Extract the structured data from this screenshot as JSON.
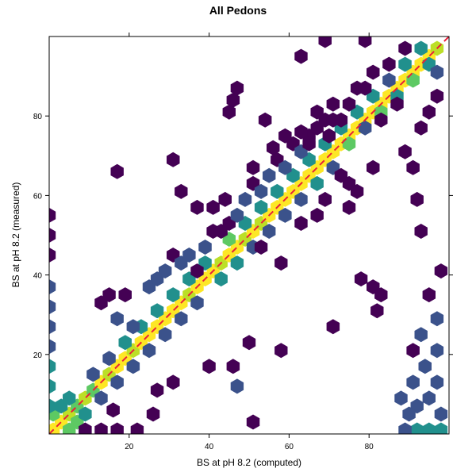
{
  "chart_data": {
    "type": "hexbin",
    "title": "All Pedons",
    "xlabel": "BS at pH 8.2 (computed)",
    "ylabel": "BS at pH 8.2 (measured)",
    "xlim": [
      0,
      100
    ],
    "ylim": [
      0,
      100
    ],
    "xticks": [
      20,
      40,
      60,
      80
    ],
    "yticks": [
      20,
      40,
      60,
      80
    ],
    "grid": false,
    "reference_line": {
      "type": "1:1",
      "slope": 1,
      "intercept": 0,
      "color": "#e8203a",
      "style": "dashed"
    },
    "color_scale": {
      "name": "viridis",
      "levels": [
        "#440154",
        "#3b528b",
        "#21908d",
        "#5dc963",
        "#bcdf27",
        "#fde725"
      ]
    },
    "bins": [
      {
        "x": 1,
        "y": 1,
        "level": 5
      },
      {
        "x": 3,
        "y": 3,
        "level": 5
      },
      {
        "x": 5,
        "y": 5,
        "level": 4
      },
      {
        "x": 7,
        "y": 7,
        "level": 3
      },
      {
        "x": 9,
        "y": 9,
        "level": 4
      },
      {
        "x": 11,
        "y": 11,
        "level": 3
      },
      {
        "x": 13,
        "y": 13,
        "level": 5
      },
      {
        "x": 15,
        "y": 15,
        "level": 4
      },
      {
        "x": 17,
        "y": 17,
        "level": 5
      },
      {
        "x": 19,
        "y": 19,
        "level": 5
      },
      {
        "x": 21,
        "y": 21,
        "level": 4
      },
      {
        "x": 23,
        "y": 23,
        "level": 5
      },
      {
        "x": 25,
        "y": 25,
        "level": 5
      },
      {
        "x": 27,
        "y": 27,
        "level": 5
      },
      {
        "x": 29,
        "y": 29,
        "level": 5
      },
      {
        "x": 31,
        "y": 31,
        "level": 5
      },
      {
        "x": 33,
        "y": 33,
        "level": 5
      },
      {
        "x": 35,
        "y": 35,
        "level": 4
      },
      {
        "x": 37,
        "y": 37,
        "level": 5
      },
      {
        "x": 39,
        "y": 39,
        "level": 5
      },
      {
        "x": 41,
        "y": 41,
        "level": 5
      },
      {
        "x": 43,
        "y": 43,
        "level": 4
      },
      {
        "x": 45,
        "y": 45,
        "level": 5
      },
      {
        "x": 47,
        "y": 47,
        "level": 5
      },
      {
        "x": 49,
        "y": 49,
        "level": 4
      },
      {
        "x": 51,
        "y": 51,
        "level": 5
      },
      {
        "x": 53,
        "y": 53,
        "level": 4
      },
      {
        "x": 55,
        "y": 55,
        "level": 5
      },
      {
        "x": 57,
        "y": 57,
        "level": 5
      },
      {
        "x": 59,
        "y": 59,
        "level": 5
      },
      {
        "x": 61,
        "y": 61,
        "level": 5
      },
      {
        "x": 63,
        "y": 63,
        "level": 5
      },
      {
        "x": 65,
        "y": 65,
        "level": 5
      },
      {
        "x": 67,
        "y": 67,
        "level": 5
      },
      {
        "x": 69,
        "y": 69,
        "level": 5
      },
      {
        "x": 71,
        "y": 71,
        "level": 5
      },
      {
        "x": 73,
        "y": 73,
        "level": 5
      },
      {
        "x": 75,
        "y": 75,
        "level": 5
      },
      {
        "x": 77,
        "y": 77,
        "level": 5
      },
      {
        "x": 79,
        "y": 79,
        "level": 5
      },
      {
        "x": 81,
        "y": 81,
        "level": 5
      },
      {
        "x": 83,
        "y": 83,
        "level": 5
      },
      {
        "x": 85,
        "y": 85,
        "level": 5
      },
      {
        "x": 87,
        "y": 87,
        "level": 5
      },
      {
        "x": 89,
        "y": 89,
        "level": 5
      },
      {
        "x": 91,
        "y": 91,
        "level": 5
      },
      {
        "x": 93,
        "y": 93,
        "level": 5
      },
      {
        "x": 95,
        "y": 95,
        "level": 5
      },
      {
        "x": 97,
        "y": 97,
        "level": 4
      },
      {
        "x": 1,
        "y": 5,
        "level": 3
      },
      {
        "x": 3,
        "y": 7,
        "level": 2
      },
      {
        "x": 5,
        "y": 9,
        "level": 2
      },
      {
        "x": 7,
        "y": 3,
        "level": 3
      },
      {
        "x": 9,
        "y": 5,
        "level": 2
      },
      {
        "x": 11,
        "y": 15,
        "level": 1
      },
      {
        "x": 13,
        "y": 9,
        "level": 1
      },
      {
        "x": 15,
        "y": 19,
        "level": 1
      },
      {
        "x": 17,
        "y": 13,
        "level": 1
      },
      {
        "x": 19,
        "y": 23,
        "level": 2
      },
      {
        "x": 21,
        "y": 17,
        "level": 1
      },
      {
        "x": 23,
        "y": 27,
        "level": 2
      },
      {
        "x": 25,
        "y": 21,
        "level": 1
      },
      {
        "x": 27,
        "y": 31,
        "level": 2
      },
      {
        "x": 29,
        "y": 25,
        "level": 1
      },
      {
        "x": 31,
        "y": 35,
        "level": 2
      },
      {
        "x": 33,
        "y": 29,
        "level": 1
      },
      {
        "x": 35,
        "y": 39,
        "level": 2
      },
      {
        "x": 37,
        "y": 33,
        "level": 1
      },
      {
        "x": 39,
        "y": 43,
        "level": 2
      },
      {
        "x": 43,
        "y": 39,
        "level": 2
      },
      {
        "x": 45,
        "y": 49,
        "level": 3
      },
      {
        "x": 47,
        "y": 43,
        "level": 2
      },
      {
        "x": 49,
        "y": 53,
        "level": 2
      },
      {
        "x": 51,
        "y": 47,
        "level": 1
      },
      {
        "x": 53,
        "y": 57,
        "level": 2
      },
      {
        "x": 55,
        "y": 51,
        "level": 1
      },
      {
        "x": 57,
        "y": 61,
        "level": 2
      },
      {
        "x": 59,
        "y": 55,
        "level": 1
      },
      {
        "x": 61,
        "y": 65,
        "level": 2
      },
      {
        "x": 63,
        "y": 59,
        "level": 1
      },
      {
        "x": 65,
        "y": 69,
        "level": 2
      },
      {
        "x": 67,
        "y": 63,
        "level": 2
      },
      {
        "x": 69,
        "y": 73,
        "level": 2
      },
      {
        "x": 71,
        "y": 67,
        "level": 1
      },
      {
        "x": 73,
        "y": 77,
        "level": 2
      },
      {
        "x": 75,
        "y": 73,
        "level": 3
      },
      {
        "x": 77,
        "y": 81,
        "level": 2
      },
      {
        "x": 79,
        "y": 77,
        "level": 1
      },
      {
        "x": 81,
        "y": 85,
        "level": 2
      },
      {
        "x": 83,
        "y": 81,
        "level": 3
      },
      {
        "x": 85,
        "y": 89,
        "level": 1
      },
      {
        "x": 87,
        "y": 85,
        "level": 2
      },
      {
        "x": 89,
        "y": 93,
        "level": 2
      },
      {
        "x": 91,
        "y": 89,
        "level": 3
      },
      {
        "x": 93,
        "y": 97,
        "level": 2
      },
      {
        "x": 95,
        "y": 93,
        "level": 2
      },
      {
        "x": 97,
        "y": 91,
        "level": 1
      },
      {
        "x": 0,
        "y": 55,
        "level": 0
      },
      {
        "x": 0,
        "y": 50,
        "level": 0
      },
      {
        "x": 0,
        "y": 45,
        "level": 0
      },
      {
        "x": 0,
        "y": 37,
        "level": 1
      },
      {
        "x": 0,
        "y": 32,
        "level": 1
      },
      {
        "x": 0,
        "y": 27,
        "level": 1
      },
      {
        "x": 0,
        "y": 22,
        "level": 1
      },
      {
        "x": 0,
        "y": 17,
        "level": 2
      },
      {
        "x": 0,
        "y": 12,
        "level": 2
      },
      {
        "x": 0,
        "y": 7,
        "level": 2
      },
      {
        "x": 98,
        "y": 1,
        "level": 2
      },
      {
        "x": 95,
        "y": 1,
        "level": 2
      },
      {
        "x": 92,
        "y": 1,
        "level": 2
      },
      {
        "x": 89,
        "y": 1,
        "level": 1
      },
      {
        "x": 98,
        "y": 5,
        "level": 1
      },
      {
        "x": 95,
        "y": 9,
        "level": 1
      },
      {
        "x": 92,
        "y": 7,
        "level": 1
      },
      {
        "x": 97,
        "y": 13,
        "level": 1
      },
      {
        "x": 94,
        "y": 17,
        "level": 1
      },
      {
        "x": 91,
        "y": 13,
        "level": 1
      },
      {
        "x": 97,
        "y": 21,
        "level": 1
      },
      {
        "x": 93,
        "y": 25,
        "level": 1
      },
      {
        "x": 97,
        "y": 29,
        "level": 1
      },
      {
        "x": 95,
        "y": 35,
        "level": 0
      },
      {
        "x": 98,
        "y": 41,
        "level": 0
      },
      {
        "x": 88,
        "y": 9,
        "level": 1
      },
      {
        "x": 90,
        "y": 5,
        "level": 1
      },
      {
        "x": 91,
        "y": 21,
        "level": 0
      },
      {
        "x": 5,
        "y": 1,
        "level": 3
      },
      {
        "x": 9,
        "y": 1,
        "level": 0
      },
      {
        "x": 13,
        "y": 1,
        "level": 0
      },
      {
        "x": 17,
        "y": 1,
        "level": 0
      },
      {
        "x": 22,
        "y": 1,
        "level": 0
      },
      {
        "x": 26,
        "y": 5,
        "level": 0
      },
      {
        "x": 51,
        "y": 3,
        "level": 0
      },
      {
        "x": 16,
        "y": 6,
        "level": 0
      },
      {
        "x": 27,
        "y": 11,
        "level": 0
      },
      {
        "x": 31,
        "y": 13,
        "level": 0
      },
      {
        "x": 47,
        "y": 12,
        "level": 1
      },
      {
        "x": 40,
        "y": 17,
        "level": 0
      },
      {
        "x": 46,
        "y": 17,
        "level": 0
      },
      {
        "x": 50,
        "y": 23,
        "level": 0
      },
      {
        "x": 58,
        "y": 21,
        "level": 0
      },
      {
        "x": 13,
        "y": 33,
        "level": 0
      },
      {
        "x": 15,
        "y": 35,
        "level": 0
      },
      {
        "x": 19,
        "y": 35,
        "level": 0
      },
      {
        "x": 17,
        "y": 29,
        "level": 1
      },
      {
        "x": 21,
        "y": 27,
        "level": 1
      },
      {
        "x": 25,
        "y": 37,
        "level": 1
      },
      {
        "x": 27,
        "y": 39,
        "level": 1
      },
      {
        "x": 29,
        "y": 41,
        "level": 1
      },
      {
        "x": 31,
        "y": 45,
        "level": 0
      },
      {
        "x": 33,
        "y": 43,
        "level": 1
      },
      {
        "x": 35,
        "y": 45,
        "level": 1
      },
      {
        "x": 37,
        "y": 41,
        "level": 0
      },
      {
        "x": 39,
        "y": 47,
        "level": 1
      },
      {
        "x": 41,
        "y": 51,
        "level": 0
      },
      {
        "x": 43,
        "y": 51,
        "level": 0
      },
      {
        "x": 45,
        "y": 53,
        "level": 0
      },
      {
        "x": 47,
        "y": 55,
        "level": 1
      },
      {
        "x": 49,
        "y": 59,
        "level": 1
      },
      {
        "x": 51,
        "y": 63,
        "level": 0
      },
      {
        "x": 53,
        "y": 61,
        "level": 1
      },
      {
        "x": 55,
        "y": 65,
        "level": 1
      },
      {
        "x": 57,
        "y": 69,
        "level": 0
      },
      {
        "x": 59,
        "y": 67,
        "level": 1
      },
      {
        "x": 61,
        "y": 73,
        "level": 0
      },
      {
        "x": 63,
        "y": 71,
        "level": 1
      },
      {
        "x": 65,
        "y": 75,
        "level": 0
      },
      {
        "x": 67,
        "y": 77,
        "level": 0
      },
      {
        "x": 69,
        "y": 79,
        "level": 0
      },
      {
        "x": 73,
        "y": 79,
        "level": 0
      },
      {
        "x": 71,
        "y": 83,
        "level": 0
      },
      {
        "x": 75,
        "y": 83,
        "level": 0
      },
      {
        "x": 77,
        "y": 87,
        "level": 0
      },
      {
        "x": 79,
        "y": 87,
        "level": 0
      },
      {
        "x": 81,
        "y": 91,
        "level": 0
      },
      {
        "x": 85,
        "y": 93,
        "level": 0
      },
      {
        "x": 89,
        "y": 97,
        "level": 0
      },
      {
        "x": 17,
        "y": 66,
        "level": 0
      },
      {
        "x": 31,
        "y": 69,
        "level": 0
      },
      {
        "x": 33,
        "y": 61,
        "level": 0
      },
      {
        "x": 46,
        "y": 84,
        "level": 0
      },
      {
        "x": 47,
        "y": 87,
        "level": 0
      },
      {
        "x": 45,
        "y": 81,
        "level": 0
      },
      {
        "x": 51,
        "y": 67,
        "level": 0
      },
      {
        "x": 54,
        "y": 79,
        "level": 0
      },
      {
        "x": 59,
        "y": 75,
        "level": 0
      },
      {
        "x": 56,
        "y": 72,
        "level": 0
      },
      {
        "x": 63,
        "y": 76,
        "level": 0
      },
      {
        "x": 65,
        "y": 73,
        "level": 0
      },
      {
        "x": 67,
        "y": 81,
        "level": 0
      },
      {
        "x": 71,
        "y": 79,
        "level": 0
      },
      {
        "x": 70,
        "y": 75,
        "level": 0
      },
      {
        "x": 75,
        "y": 63,
        "level": 0
      },
      {
        "x": 77,
        "y": 61,
        "level": 0
      },
      {
        "x": 81,
        "y": 67,
        "level": 0
      },
      {
        "x": 83,
        "y": 79,
        "level": 0
      },
      {
        "x": 87,
        "y": 83,
        "level": 0
      },
      {
        "x": 89,
        "y": 71,
        "level": 0
      },
      {
        "x": 91,
        "y": 67,
        "level": 0
      },
      {
        "x": 92,
        "y": 59,
        "level": 0
      },
      {
        "x": 93,
        "y": 51,
        "level": 0
      },
      {
        "x": 93,
        "y": 77,
        "level": 0
      },
      {
        "x": 95,
        "y": 81,
        "level": 0
      },
      {
        "x": 97,
        "y": 85,
        "level": 0
      },
      {
        "x": 75,
        "y": 57,
        "level": 0
      },
      {
        "x": 78,
        "y": 39,
        "level": 0
      },
      {
        "x": 81,
        "y": 37,
        "level": 0
      },
      {
        "x": 83,
        "y": 35,
        "level": 0
      },
      {
        "x": 82,
        "y": 31,
        "level": 0
      },
      {
        "x": 71,
        "y": 27,
        "level": 0
      },
      {
        "x": 63,
        "y": 53,
        "level": 0
      },
      {
        "x": 67,
        "y": 55,
        "level": 0
      },
      {
        "x": 69,
        "y": 59,
        "level": 0
      },
      {
        "x": 73,
        "y": 65,
        "level": 0
      },
      {
        "x": 58,
        "y": 43,
        "level": 0
      },
      {
        "x": 53,
        "y": 47,
        "level": 0
      },
      {
        "x": 63,
        "y": 95,
        "level": 0
      },
      {
        "x": 69,
        "y": 99,
        "level": 0
      },
      {
        "x": 79,
        "y": 99,
        "level": 0
      },
      {
        "x": 37,
        "y": 57,
        "level": 0
      },
      {
        "x": 41,
        "y": 57,
        "level": 0
      },
      {
        "x": 44,
        "y": 59,
        "level": 0
      }
    ]
  }
}
